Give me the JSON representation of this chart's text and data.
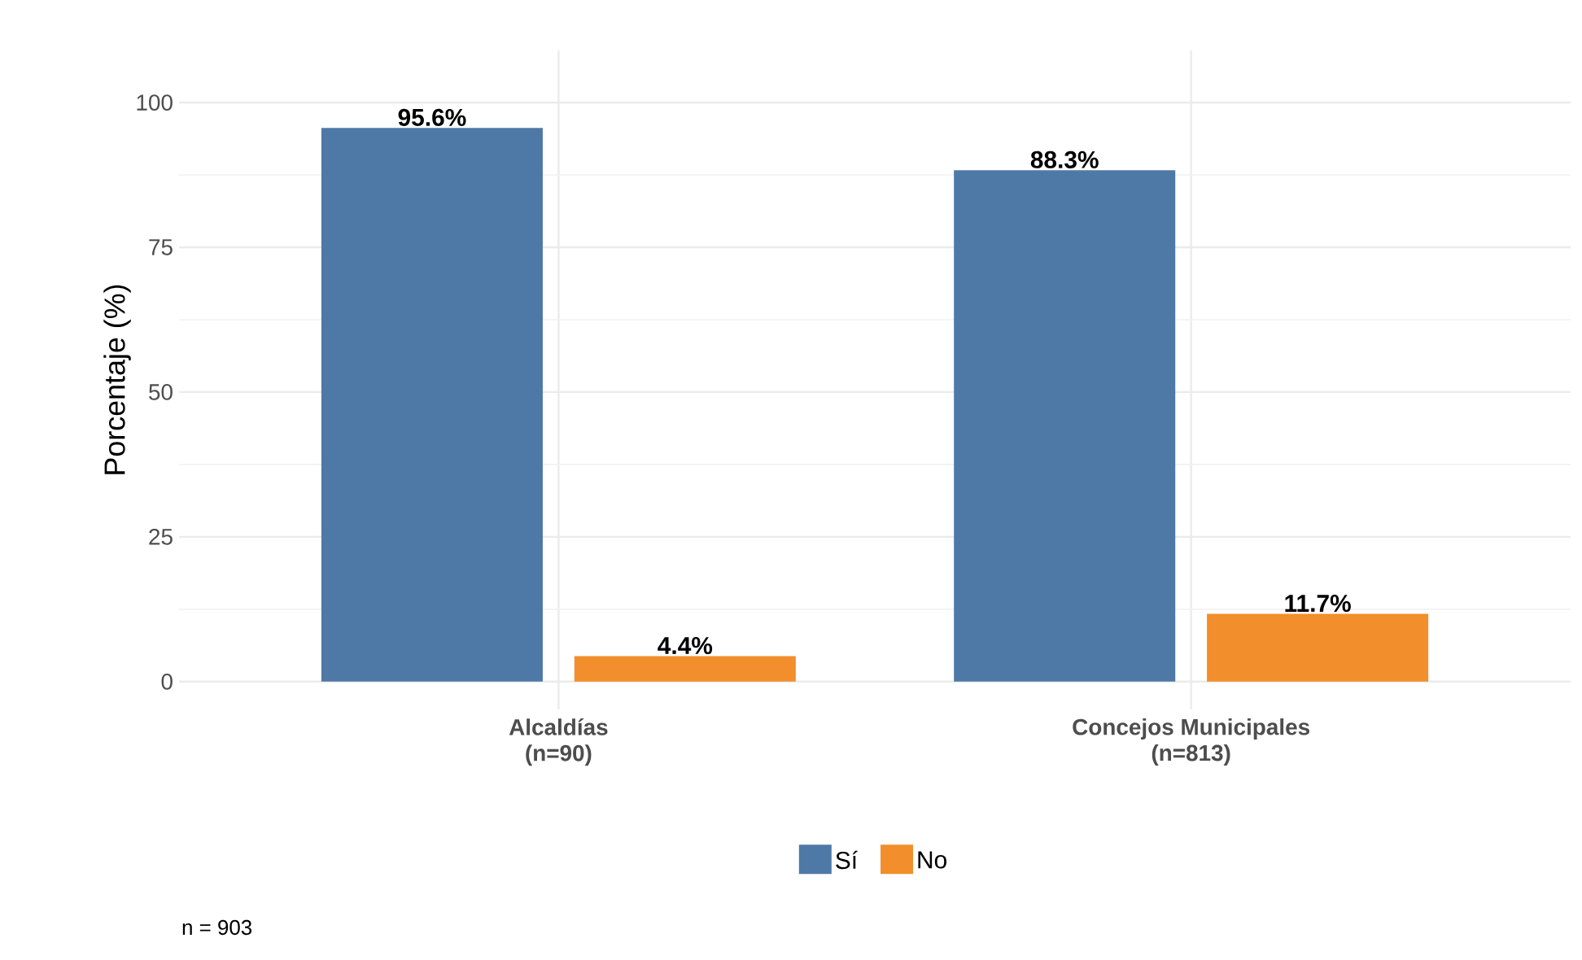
{
  "chart_data": {
    "type": "bar",
    "ylabel": "Porcentaje (%)",
    "categories": [
      "Alcaldías (n=90)",
      "Concejos Municipales (n=813)"
    ],
    "series": [
      {
        "name": "Sí",
        "color": "#4e79a7",
        "values": [
          95.6,
          88.3
        ],
        "value_labels": [
          "95.6%",
          "88.3%"
        ]
      },
      {
        "name": "No",
        "color": "#f28e2b",
        "values": [
          4.4,
          11.7
        ],
        "value_labels": [
          "4.4%",
          "11.7%"
        ]
      }
    ],
    "ylim": [
      -4.8,
      109
    ],
    "yticks": [
      0,
      25,
      50,
      75,
      100
    ],
    "grid": true,
    "legend": "bottom",
    "annotations": [
      "n = 903"
    ]
  }
}
